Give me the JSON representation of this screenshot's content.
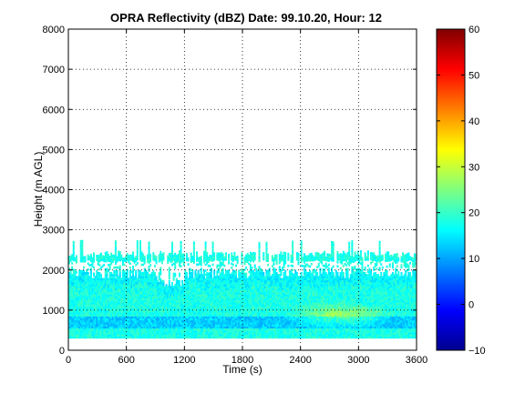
{
  "chart_data": {
    "type": "heatmap",
    "title": "OPRA Reflectivity (dBZ)  Date: 99.10.20, Hour: 12",
    "xlabel": "Time (s)",
    "ylabel": "Height (m AGL)",
    "xlim": [
      0,
      3600
    ],
    "ylim": [
      0,
      8000
    ],
    "xticks": [
      "0",
      "600",
      "1200",
      "1800",
      "2400",
      "3000",
      "3600"
    ],
    "yticks": [
      "0",
      "1000",
      "2000",
      "3000",
      "4000",
      "5000",
      "6000",
      "7000",
      "8000"
    ],
    "grid": true,
    "colorbar": {
      "range": [
        -10,
        60
      ],
      "ticks": [
        "-10",
        "0",
        "10",
        "20",
        "30",
        "40",
        "50",
        "60"
      ],
      "colormap": "jet"
    },
    "echo_layer": {
      "base_m": 300,
      "main_top_m": 1900,
      "bright_band_m": [
        1700,
        2450
      ],
      "sporadic_top_m": 2700,
      "gap_m": [
        1900,
        2200
      ],
      "typical_dbz": 18,
      "low_band_m": [
        550,
        800
      ],
      "low_band_dbz": 12,
      "max_dbz": 28,
      "max_at_s": 2800,
      "max_at_m": 850
    }
  }
}
